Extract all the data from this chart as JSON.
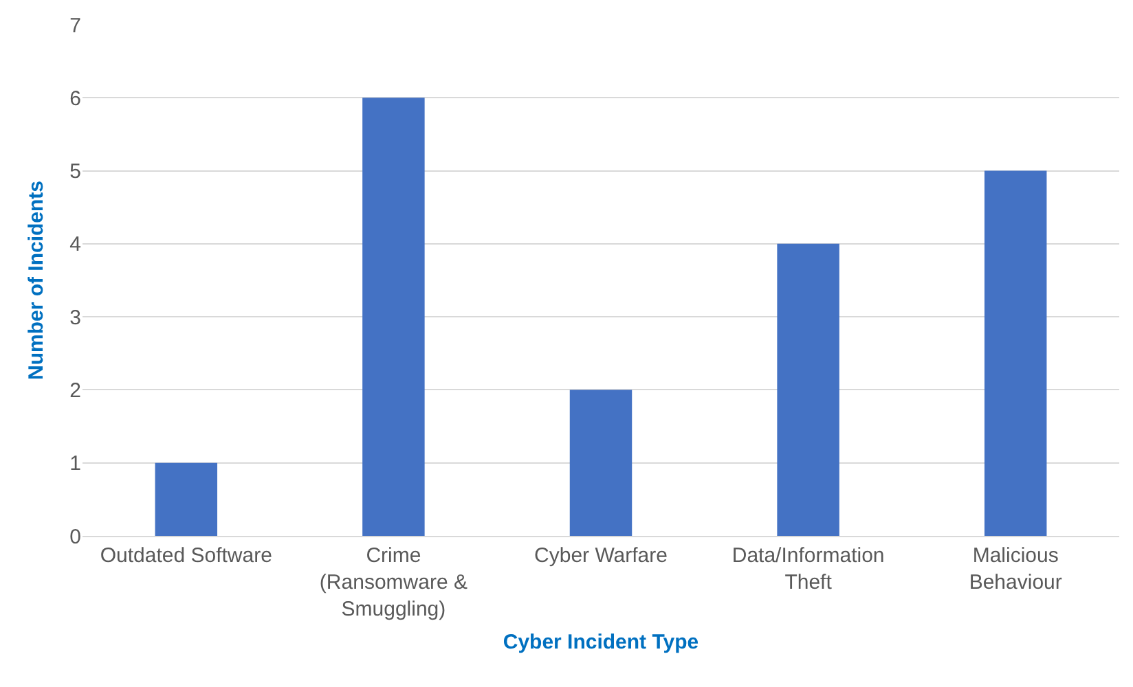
{
  "chart_data": {
    "type": "bar",
    "xlabel": "Cyber Incident Type",
    "ylabel": "Number of Incidents",
    "categories": [
      "Outdated Software",
      "Crime\n(Ransomware &\nSmuggling)",
      "Cyber Warfare",
      "Data/Information\nTheft",
      "Malicious\nBehaviour"
    ],
    "values": [
      1,
      6,
      2,
      4,
      5
    ],
    "color": "#4472c4",
    "ylim": [
      0,
      7
    ],
    "yticks": [
      0,
      1,
      2,
      3,
      4,
      5,
      6,
      7
    ],
    "grid": "y"
  }
}
